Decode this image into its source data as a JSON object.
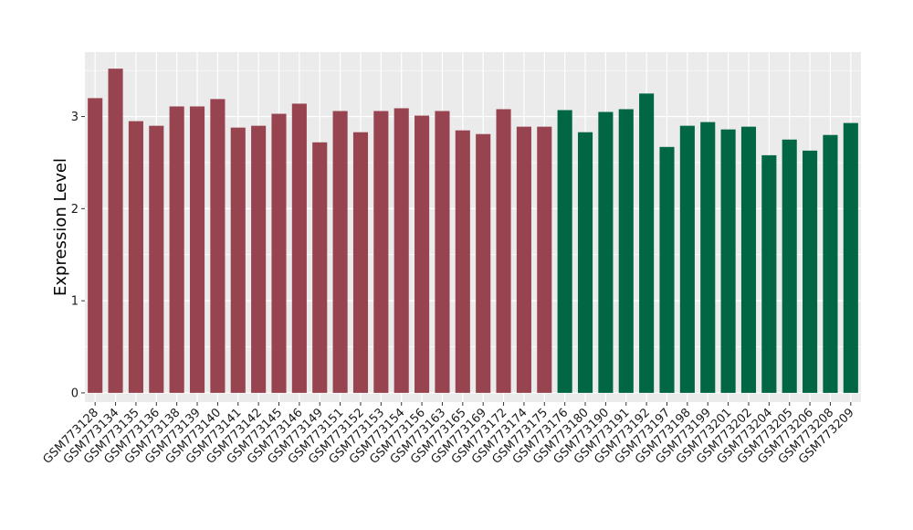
{
  "chart_data": {
    "type": "bar",
    "ylabel": "Expression Level",
    "ylim": [
      -0.1,
      3.7
    ],
    "yticks": [
      0,
      1,
      2,
      3
    ],
    "grid": true,
    "categories": [
      "GSM773128",
      "GSM773134",
      "GSM773135",
      "GSM773136",
      "GSM773138",
      "GSM773139",
      "GSM773140",
      "GSM773141",
      "GSM773142",
      "GSM773145",
      "GSM773146",
      "GSM773149",
      "GSM773151",
      "GSM773152",
      "GSM773153",
      "GSM773154",
      "GSM773156",
      "GSM773163",
      "GSM773165",
      "GSM773169",
      "GSM773172",
      "GSM773174",
      "GSM773175",
      "GSM773176",
      "GSM773180",
      "GSM773190",
      "GSM773191",
      "GSM773192",
      "GSM773197",
      "GSM773198",
      "GSM773199",
      "GSM773201",
      "GSM773202",
      "GSM773204",
      "GSM773205",
      "GSM773206",
      "GSM773208",
      "GSM773209"
    ],
    "values": [
      3.2,
      3.52,
      2.95,
      2.9,
      3.11,
      3.11,
      3.19,
      2.88,
      2.9,
      3.03,
      3.14,
      2.72,
      3.06,
      2.83,
      3.06,
      3.09,
      3.01,
      3.06,
      2.85,
      2.81,
      3.08,
      2.89,
      2.89,
      3.07,
      2.83,
      3.05,
      3.08,
      3.25,
      2.67,
      2.9,
      2.94,
      2.86,
      2.89,
      2.58,
      2.75,
      2.63,
      2.8,
      2.93
    ],
    "groups": [
      0,
      0,
      0,
      0,
      0,
      0,
      0,
      0,
      0,
      0,
      0,
      0,
      0,
      0,
      0,
      0,
      0,
      0,
      0,
      0,
      0,
      0,
      0,
      1,
      1,
      1,
      1,
      1,
      1,
      1,
      1,
      1,
      1,
      1,
      1,
      1,
      1,
      1
    ],
    "group_colors": [
      "#984450",
      "#006644"
    ]
  },
  "style": {
    "panel_background": "#ebebeb",
    "grid_color": "#ffffff"
  }
}
